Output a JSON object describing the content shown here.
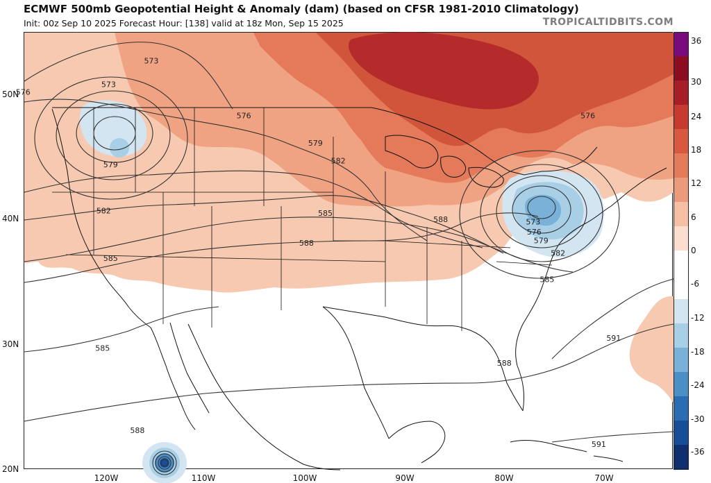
{
  "header": {
    "title": "ECMWF 500mb Geopotential Height & Anomaly (dam) (based on CFSR 1981-2010 Climatology)",
    "subtitle": "Init: 00z Sep 10 2025   Forecast Hour: [138]   valid at 18z Mon, Sep 15 2025",
    "brand": "TROPICALTIDBITS.COM"
  },
  "axes": {
    "lat_labels": [
      "50N",
      "40N",
      "30N",
      "20N"
    ],
    "lon_labels": [
      "120W",
      "110W",
      "100W",
      "90W",
      "80W",
      "70W"
    ]
  },
  "contours": {
    "labels": [
      {
        "text": "573",
        "lat": 52.2,
        "lon": -115.5
      },
      {
        "text": "573",
        "lat": 50.3,
        "lon": -119.8
      },
      {
        "text": "576",
        "lat": 49.7,
        "lon": -128.4
      },
      {
        "text": "576",
        "lat": 47.8,
        "lon": -106.2
      },
      {
        "text": "579",
        "lat": 43.9,
        "lon": -119.6
      },
      {
        "text": "579",
        "lat": 45.6,
        "lon": -99.0
      },
      {
        "text": "582",
        "lat": 44.2,
        "lon": -96.7
      },
      {
        "text": "582",
        "lat": 40.2,
        "lon": -120.3
      },
      {
        "text": "585",
        "lat": 40.0,
        "lon": -98.0
      },
      {
        "text": "585",
        "lat": 36.4,
        "lon": -119.6
      },
      {
        "text": "585",
        "lat": 29.2,
        "lon": -120.4
      },
      {
        "text": "588",
        "lat": 37.6,
        "lon": -99.9
      },
      {
        "text": "588",
        "lat": 39.5,
        "lon": -86.4
      },
      {
        "text": "588",
        "lat": 28.0,
        "lon": -80.0
      },
      {
        "text": "588",
        "lat": 22.6,
        "lon": -116.9
      },
      {
        "text": "576",
        "lat": 47.8,
        "lon": -71.6
      },
      {
        "text": "573",
        "lat": 39.3,
        "lon": -77.1
      },
      {
        "text": "576",
        "lat": 38.5,
        "lon": -77.0
      },
      {
        "text": "579",
        "lat": 37.8,
        "lon": -76.3
      },
      {
        "text": "582",
        "lat": 36.8,
        "lon": -74.6
      },
      {
        "text": "585",
        "lat": 34.7,
        "lon": -75.7
      },
      {
        "text": "591",
        "lat": 30.0,
        "lon": -69.0
      },
      {
        "text": "591",
        "lat": 21.5,
        "lon": -70.5
      }
    ]
  },
  "colorbar": {
    "ticks": [
      "36",
      "30",
      "24",
      "18",
      "12",
      "6",
      "0",
      "-6",
      "-12",
      "-18",
      "-24",
      "-30",
      "-36"
    ],
    "colors": [
      "#7b0a7d",
      "#8a0d22",
      "#a81e28",
      "#c63a2f",
      "#d8593f",
      "#e37a5a",
      "#eb9b7b",
      "#f4bfa4",
      "#fbded0",
      "#ffffff",
      "#ffffff",
      "#d2e5f1",
      "#a8cfe6",
      "#79b1d8",
      "#4c8fc6",
      "#2a6db2",
      "#184e97",
      "#0f2f6e"
    ]
  },
  "legend": {
    "anomaly_units": "dam"
  }
}
